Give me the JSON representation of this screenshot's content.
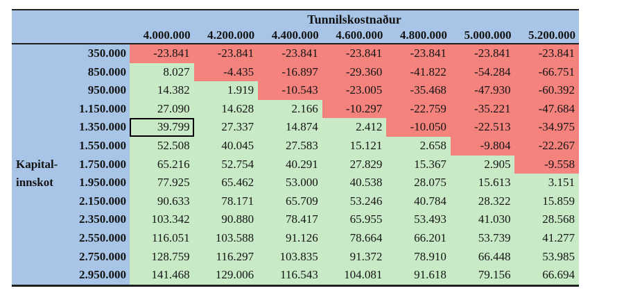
{
  "chart_data": {
    "type": "table",
    "title": "Tunnilskostnaður",
    "row_axis_label_lines": [
      "Kapital-",
      "innskot"
    ],
    "col_headers": [
      "4.000.000",
      "4.200.000",
      "4.400.000",
      "4.600.000",
      "4.800.000",
      "5.000.000",
      "5.200.000"
    ],
    "row_headers": [
      "350.000",
      "850.000",
      "950.000",
      "1.150.000",
      "1.350.000",
      "1.550.000",
      "1.750.000",
      "1.950.000",
      "2.150.000",
      "2.350.000",
      "2.550.000",
      "2.750.000",
      "2.950.000"
    ],
    "rows": [
      [
        "-23.841",
        "-23.841",
        "-23.841",
        "-23.841",
        "-23.841",
        "-23.841",
        "-23.841"
      ],
      [
        "8.027",
        "-4.435",
        "-16.897",
        "-29.360",
        "-41.822",
        "-54.284",
        "-66.751"
      ],
      [
        "14.382",
        "1.919",
        "-10.543",
        "-23.005",
        "-35.468",
        "-47.930",
        "-60.392"
      ],
      [
        "27.090",
        "14.628",
        "2.166",
        "-10.297",
        "-22.759",
        "-35.221",
        "-47.684"
      ],
      [
        "39.799",
        "27.337",
        "14.874",
        "2.412",
        "-10.050",
        "-22.513",
        "-34.975"
      ],
      [
        "52.508",
        "40.045",
        "27.583",
        "15.121",
        "2.658",
        "-9.804",
        "-22.267"
      ],
      [
        "65.216",
        "52.754",
        "40.291",
        "27.829",
        "15.367",
        "2.905",
        "-9.558"
      ],
      [
        "77.925",
        "65.462",
        "53.000",
        "40.538",
        "28.075",
        "15.613",
        "3.151"
      ],
      [
        "90.633",
        "78.171",
        "65.709",
        "53.246",
        "40.784",
        "28.322",
        "15.859"
      ],
      [
        "103.342",
        "90.880",
        "78.417",
        "65.955",
        "53.493",
        "41.030",
        "28.568"
      ],
      [
        "116.051",
        "103.588",
        "91.126",
        "78.664",
        "66.201",
        "53.739",
        "41.277"
      ],
      [
        "128.759",
        "116.297",
        "103.835",
        "91.372",
        "78.910",
        "66.448",
        "53.985"
      ],
      [
        "141.468",
        "129.006",
        "116.543",
        "104.081",
        "91.618",
        "79.156",
        "66.694"
      ]
    ],
    "selected_cell": {
      "row_index": 4,
      "col_index": 0
    },
    "colors": {
      "header_bg": "#a8c5e8",
      "negative_bg": "#f4827d",
      "positive_bg": "#c9eac6",
      "line": "#1f1f1f",
      "selected_border": "#000000"
    },
    "legend_position": "none",
    "grid": "off"
  }
}
